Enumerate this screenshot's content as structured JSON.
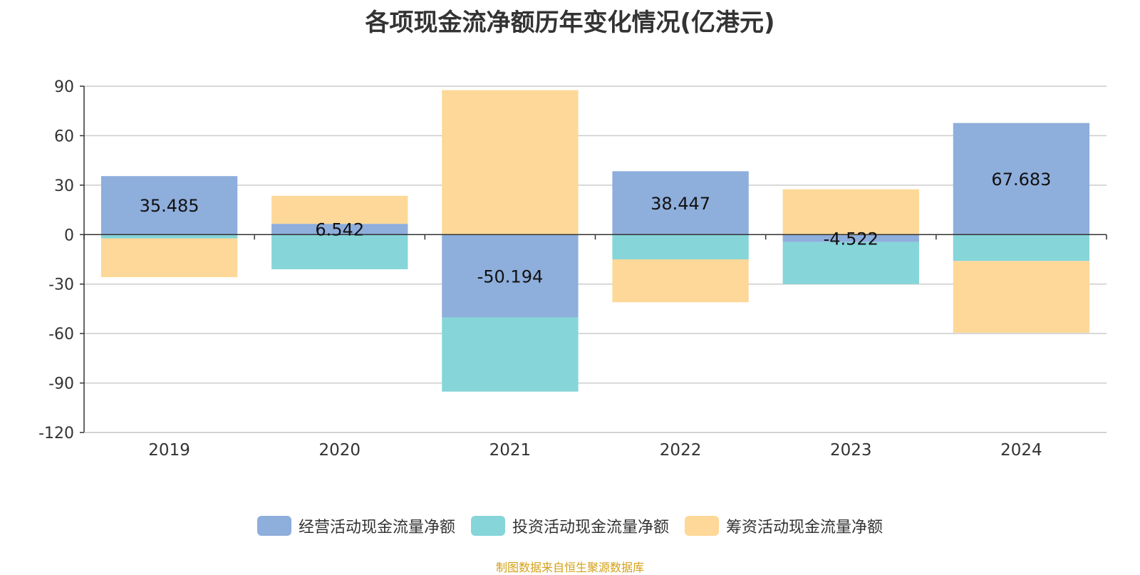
{
  "colors": {
    "operating": "#8eaedc",
    "investing": "#86d5d9",
    "financing": "#fed898",
    "source_text": "#d4a017"
  },
  "chart_data": {
    "type": "bar",
    "stacked": true,
    "title": "各项现金流净额历年变化情况(亿港元)",
    "categories": [
      "2019",
      "2020",
      "2021",
      "2022",
      "2023",
      "2024"
    ],
    "series": [
      {
        "name": "经营活动现金流量净额",
        "values": [
          35.485,
          6.542,
          -50.194,
          38.447,
          -4.522,
          67.683
        ],
        "labels": [
          "35.485",
          "6.542",
          "-50.194",
          "38.447",
          "-4.522",
          "67.683"
        ]
      },
      {
        "name": "投资活动现金流量净额",
        "values": [
          -2.3,
          -21.0,
          -45.0,
          -15.0,
          -25.5,
          -16.0
        ]
      },
      {
        "name": "筹资活动现金流量净额",
        "values": [
          -23.5,
          17.0,
          87.6,
          -26.0,
          27.5,
          -43.5
        ]
      }
    ],
    "yticks": [
      "90",
      "60",
      "30",
      "0",
      "-30",
      "-60",
      "-90",
      "-120"
    ],
    "ylim": [
      -120,
      90
    ],
    "grid": true,
    "legend_position": "bottom"
  },
  "footer": {
    "source": "制图数据来自恒生聚源数据库"
  }
}
